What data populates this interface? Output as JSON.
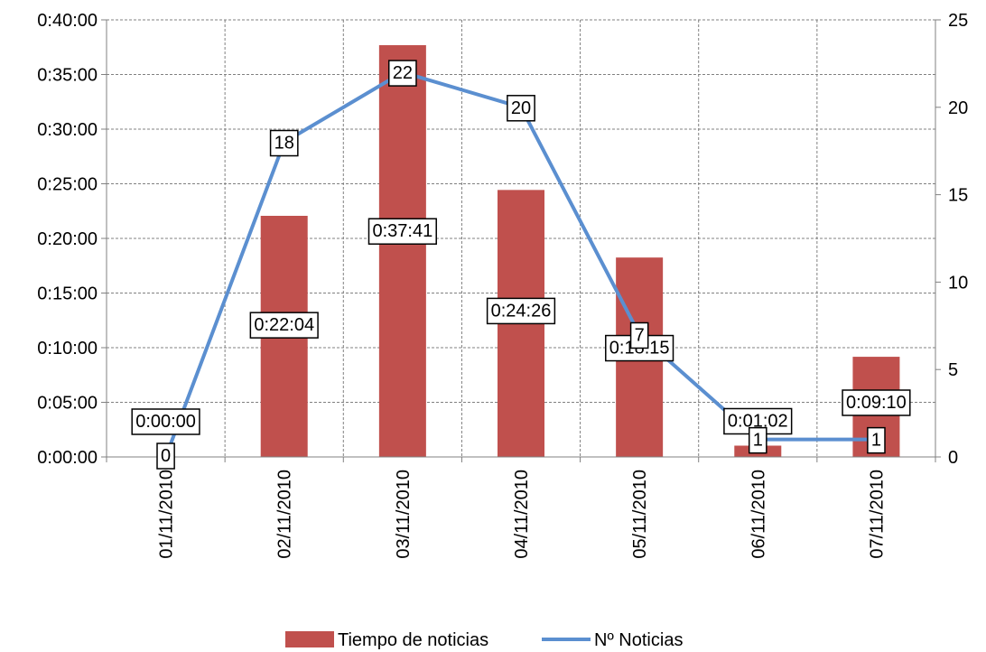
{
  "chart_data": {
    "type": "bar+line",
    "categories": [
      "01/11/2010",
      "02/11/2010",
      "03/11/2010",
      "04/11/2010",
      "05/11/2010",
      "06/11/2010",
      "07/11/2010"
    ],
    "series": [
      {
        "name": "Tiempo de noticias",
        "type": "bar",
        "axis": "left",
        "values": [
          0,
          1324,
          2261,
          1466,
          1095,
          62,
          550
        ],
        "value_labels": [
          "0:00:00",
          "0:22:04",
          "0:37:41",
          "0:24:26",
          "0:18:15",
          "0:01:02",
          "0:09:10"
        ],
        "color": "#c0504d"
      },
      {
        "name": "Nº Noticias",
        "type": "line",
        "axis": "right",
        "values": [
          0,
          18,
          22,
          20,
          7,
          1,
          1
        ],
        "color": "#5b8fd0"
      }
    ],
    "y_left": {
      "ticks": [
        0,
        300,
        600,
        900,
        1200,
        1500,
        1800,
        2100,
        2400
      ],
      "tick_labels": [
        "0:00:00",
        "0:05:00",
        "0:10:00",
        "0:15:00",
        "0:20:00",
        "0:25:00",
        "0:30:00",
        "0:35:00",
        "0:40:00"
      ],
      "range": [
        0,
        2400
      ]
    },
    "y_right": {
      "ticks": [
        0,
        5,
        10,
        15,
        20,
        25
      ],
      "range": [
        0,
        25
      ]
    },
    "grid": true,
    "legend": "bottom"
  }
}
